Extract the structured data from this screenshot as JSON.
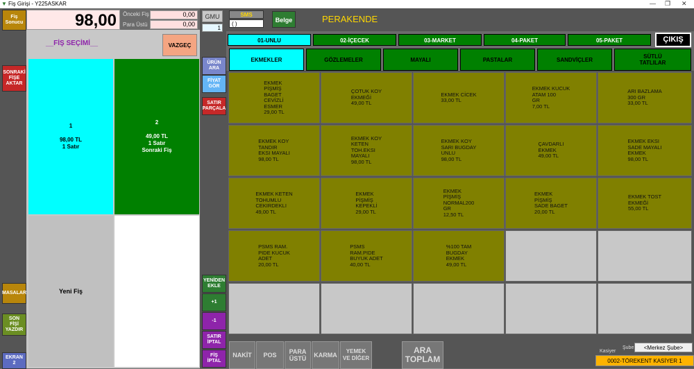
{
  "window": {
    "title": "Fiş Girişi - Y225ASKAR",
    "minimize": "—",
    "maximize": "❐",
    "close": "✕"
  },
  "header": {
    "fis_sonucu_label": "Fiş\nSonucu",
    "amount": "98,00",
    "onceki_fis_label": "Önceki Fiş",
    "onceki_fis_value": "0,00",
    "para_ustu_label": "Para Üstü",
    "para_ustu_value": "0,00",
    "gmu_label": "GMU",
    "gmu_value": "1",
    "sms_label": "SMS",
    "sms_value": "( )",
    "belge_label": "Belge",
    "mode_title": "PERAKENDE",
    "exit_label": "ÇIKIŞ"
  },
  "left_strip": {
    "sonraki_fise_aktar": "SONRAKİ\nFİŞE\nAKTAR",
    "masalar": "MASALAR",
    "son_fisi_yazdir": "SON\nFİŞİ\nYAZDIR",
    "ekran_2": "EKRAN\n2"
  },
  "fis_panel": {
    "title": "__FİŞ SEÇİMİ__",
    "cancel": "VAZGEÇ",
    "fis1": {
      "num": "1",
      "amount": "98,00 TL",
      "info": "1 Satır"
    },
    "fis2": {
      "num": "2",
      "amount": "49,00 TL",
      "info": "1 Satır",
      "note": "Sonraki Fiş"
    },
    "new_fis": "Yeni Fiş"
  },
  "mid_strip": {
    "urun_ara": "ÜRÜN\nARA",
    "fiyat_gor": "FİYAT\nGÖR",
    "satir_parcala": "SATIR\nPARÇALA",
    "yeniden_ekle": "YENİDEN\nEKLE",
    "plus1": "+1",
    "minus1": "-1",
    "satir_iptal": "SATIR\nİPTAL",
    "fis_iptal": "FİŞ\nİPTAL"
  },
  "categories": [
    "01-UNLU",
    "02-İÇECEK",
    "03-MARKET",
    "04-PAKET",
    "05-PAKET"
  ],
  "subcategories": [
    "EKMEKLER",
    "GÖZLEMELER",
    "MAYALI",
    "PASTALAR",
    "SANDVİÇLER",
    "SÜTLÜ\nTATLILAR"
  ],
  "products": [
    "EKMEK\nPİŞMİŞ\nBAGET\nCEVİZLİ\nESMER\n29,00 TL",
    "ÇOTUK KOY\nEKMEĞİ\n49,00 TL",
    "EKMEK CİCEK\n33,00 TL",
    "EKMEK KUCUK\nATAM 100\nGR\n7,00 TL",
    "ARI BAZLAMA\n300 GR\n33,00 TL",
    "EKMEK KOY\nTANDIR\nEKSI MAYALI\n98,00 TL",
    "EKMEK KOY\nKETEN\nTOH.EKSI\nMAYALI\n98,00 TL",
    "EKMEK KOY\nSARI BUGDAY\nUNLU\n98,00 TL",
    "ÇAVDARLI\nEKMEK\n49,00 TL",
    "EKMEK EKSI\nSADE MAYALI\nEKMEK\n98,00 TL",
    "EKMEK KETEN\nTOHUMLU\nCEKIRDEKLI\n49,00 TL",
    "EKMEK\nPİŞMİŞ\nKEPEKLİ\n29,00 TL",
    "EKMEK\nPİŞMİŞ\nNORMAL200\nGR\n12,50 TL",
    "EKMEK\nPİŞMİŞ\nSADE BAGET\n20,00 TL",
    "EKMEK TOST\nEKMEĞİ\n55,00 TL",
    "PSMS RAM.\nPIDE KUCUK\nADET\n20,00 TL",
    "PSMS\nRAM.PIDE\nBUYUK ADET\n40,00 TL",
    "%100 TAM\nBUGDAY\nEKMEK\n49,00 TL",
    "",
    "",
    "",
    "",
    "",
    "",
    ""
  ],
  "bottom": {
    "nakit": "NAKİT",
    "pos": "POS",
    "para_ustu": "PARA\nÜSTÜ",
    "karma": "KARMA",
    "yemek": "YEMEK\nVE DİĞER",
    "ara_toplam": "ARA\nTOPLAM",
    "kasiyer_label": "Kasiyer",
    "sube_label": "Şube",
    "sube_value": "<Merkez Şube>",
    "kasiyer_value": "0002-TÖREKENT KASİYER 1"
  },
  "colors": {
    "olive": "#808000",
    "green": "#008000",
    "cyan": "#00ffff",
    "header_yellow": "#ffd700"
  }
}
